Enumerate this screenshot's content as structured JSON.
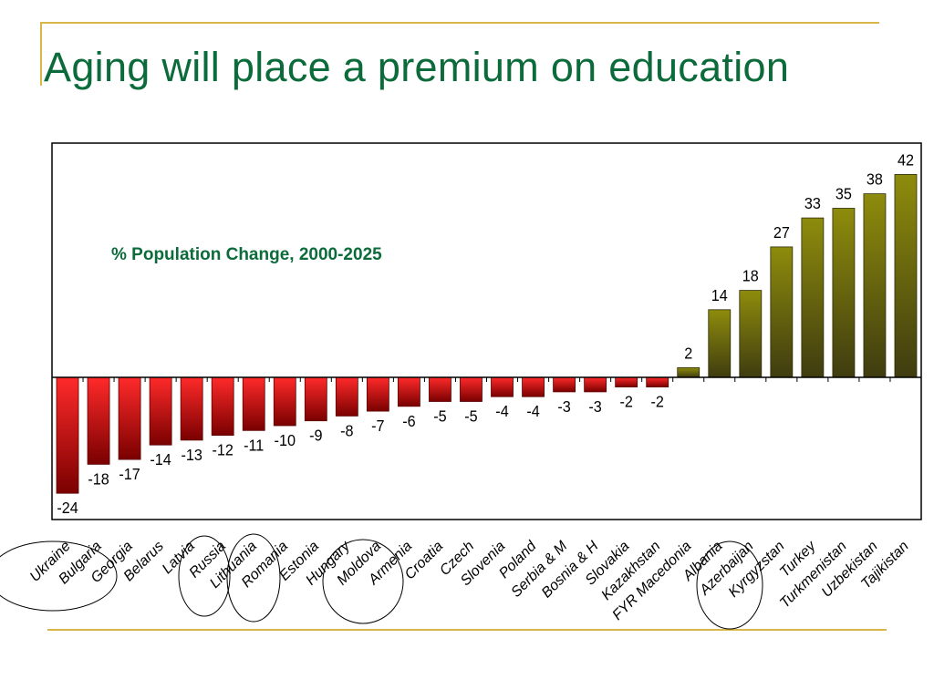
{
  "slide": {
    "title": "Aging will place a premium on education"
  },
  "colors": {
    "title": "#0b6b3a",
    "frame_accent": "#d8b64a",
    "negative_bar": "#e3001b",
    "positive_bar": "#8a8a10",
    "chart_title": "#0b6b3a",
    "circle_outline": "#000000"
  },
  "chart_data": {
    "type": "bar",
    "title": "% Population Change, 2000-2025",
    "xlabel": "",
    "ylabel": "",
    "ylim": [
      -26,
      46
    ],
    "grid": false,
    "legend": "none",
    "categories": [
      "Ukraine",
      "Bulgaria",
      "Georgia",
      "Belarus",
      "Latvia",
      "Russia",
      "Lithuania",
      "Romania",
      "Estonia",
      "Hungary",
      "Moldova",
      "Armenia",
      "Croatia",
      "Czech",
      "Slovenia",
      "Poland",
      "Serbia & M",
      "Bosnia & H",
      "Slovakia",
      "Kazakhstan",
      "FYR Macedonia",
      "Albania",
      "Azerbaijan",
      "Kyrgyzstan",
      "Turkey",
      "Turkmenistan",
      "Uzbekistan",
      "Tajikistan"
    ],
    "values": [
      -24,
      -18,
      -17,
      -14,
      -13,
      -12,
      -11,
      -10,
      -9,
      -8,
      -7,
      -6,
      -5,
      -5,
      -4,
      -4,
      -3,
      -3,
      -2,
      -2,
      2,
      14,
      18,
      27,
      33,
      35,
      38,
      42
    ],
    "circled_groups": [
      [
        "Ukraine",
        "Bulgaria",
        "Georgia"
      ],
      [
        "Russia"
      ],
      [
        "Romania"
      ],
      [
        "Moldova",
        "Armenia"
      ],
      [
        "Azerbaijan",
        "Kyrgyzstan"
      ]
    ]
  }
}
